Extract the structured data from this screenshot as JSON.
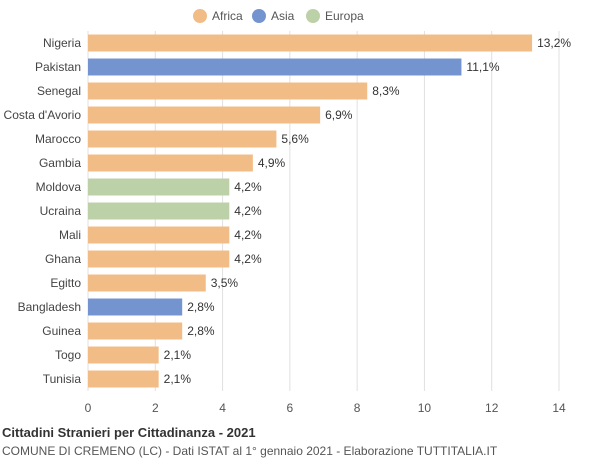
{
  "chart_data": {
    "type": "bar",
    "orientation": "horizontal",
    "title": "Cittadini Stranieri per Cittadinanza - 2021",
    "subtitle": "COMUNE DI CREMENO (LC) - Dati ISTAT al 1° gennaio 2021 - Elaborazione TUTTITALIA.IT",
    "xlabel": "",
    "ylabel": "",
    "xlim": [
      0,
      14
    ],
    "x_ticks": [
      0,
      2,
      4,
      6,
      8,
      10,
      12,
      14
    ],
    "grid": true,
    "legend": {
      "position": "top",
      "entries": [
        {
          "name": "Africa",
          "color": "#f2bc87"
        },
        {
          "name": "Asia",
          "color": "#7494cf"
        },
        {
          "name": "Europa",
          "color": "#bdd1a9"
        }
      ]
    },
    "categories": [
      "Nigeria",
      "Pakistan",
      "Senegal",
      "Costa d'Avorio",
      "Marocco",
      "Gambia",
      "Moldova",
      "Ucraina",
      "Mali",
      "Ghana",
      "Egitto",
      "Bangladesh",
      "Guinea",
      "Togo",
      "Tunisia"
    ],
    "values": [
      13.2,
      11.1,
      8.3,
      6.9,
      5.6,
      4.9,
      4.2,
      4.2,
      4.2,
      4.2,
      3.5,
      2.8,
      2.8,
      2.1,
      2.1
    ],
    "value_labels": [
      "13,2%",
      "11,1%",
      "8,3%",
      "6,9%",
      "5,6%",
      "4,9%",
      "4,2%",
      "4,2%",
      "4,2%",
      "4,2%",
      "3,5%",
      "2,8%",
      "2,8%",
      "2,1%",
      "2,1%"
    ],
    "groups": [
      "Africa",
      "Asia",
      "Africa",
      "Africa",
      "Africa",
      "Africa",
      "Europa",
      "Europa",
      "Africa",
      "Africa",
      "Africa",
      "Asia",
      "Africa",
      "Africa",
      "Africa"
    ]
  }
}
